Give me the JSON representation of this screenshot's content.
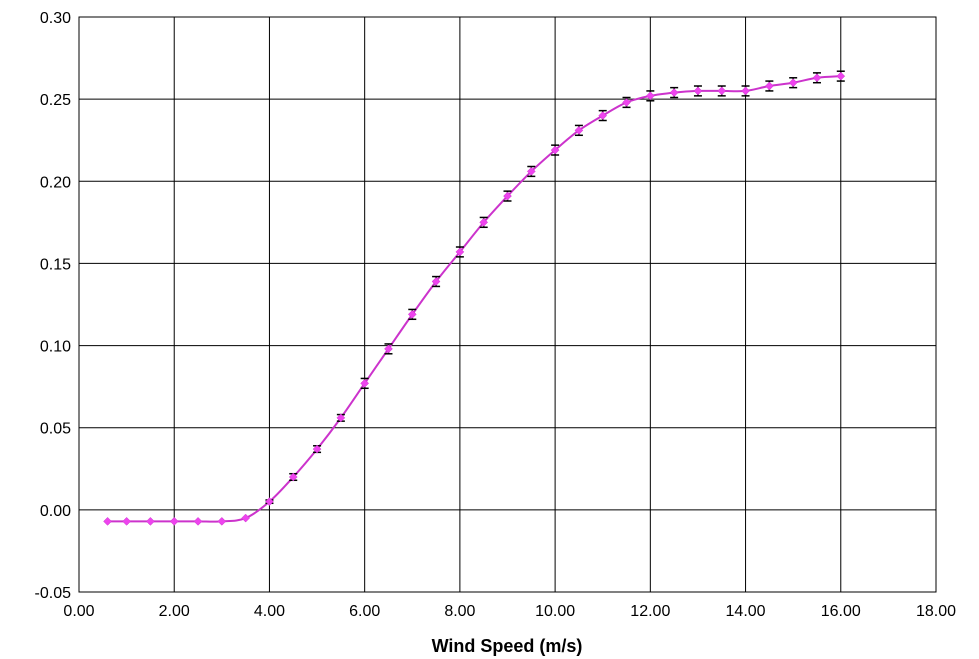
{
  "chart_data": {
    "type": "line",
    "title": "",
    "xlabel": "Wind Speed (m/s)",
    "ylabel": "",
    "xlim": [
      0,
      18
    ],
    "ylim": [
      -0.05,
      0.3
    ],
    "x_ticks": [
      "0.00",
      "2.00",
      "4.00",
      "6.00",
      "8.00",
      "10.00",
      "12.00",
      "14.00",
      "16.00",
      "18.00"
    ],
    "y_ticks": [
      "-0.05",
      "0.00",
      "0.05",
      "0.10",
      "0.15",
      "0.20",
      "0.25",
      "0.30"
    ],
    "grid": true,
    "legend": "none",
    "colors": {
      "series": "#cc33cc",
      "marker": "#ee44ee",
      "error_bar": "#000000",
      "grid": "#000000"
    },
    "series": [
      {
        "x": [
          0.6,
          1.0,
          1.5,
          2.0,
          2.5,
          3.0,
          3.5,
          4.0,
          4.5,
          5.0,
          5.5,
          6.0,
          6.5,
          7.0,
          7.5,
          8.0,
          8.5,
          9.0,
          9.5,
          10.0,
          10.5,
          11.0,
          11.5,
          12.0,
          12.5,
          13.0,
          13.5,
          14.0,
          14.5,
          15.0,
          15.5,
          16.0
        ],
        "y": [
          -0.007,
          -0.007,
          -0.007,
          -0.007,
          -0.007,
          -0.007,
          -0.005,
          0.005,
          0.02,
          0.037,
          0.056,
          0.077,
          0.098,
          0.119,
          0.139,
          0.157,
          0.175,
          0.191,
          0.206,
          0.219,
          0.231,
          0.24,
          0.248,
          0.252,
          0.254,
          0.255,
          0.255,
          0.255,
          0.258,
          0.26,
          0.263,
          0.264
        ],
        "error": [
          0,
          0,
          0,
          0,
          0,
          0,
          0,
          0.001,
          0.002,
          0.002,
          0.002,
          0.003,
          0.003,
          0.003,
          0.003,
          0.003,
          0.003,
          0.003,
          0.003,
          0.003,
          0.003,
          0.003,
          0.003,
          0.003,
          0.003,
          0.003,
          0.003,
          0.003,
          0.003,
          0.003,
          0.003,
          0.003
        ]
      }
    ]
  }
}
